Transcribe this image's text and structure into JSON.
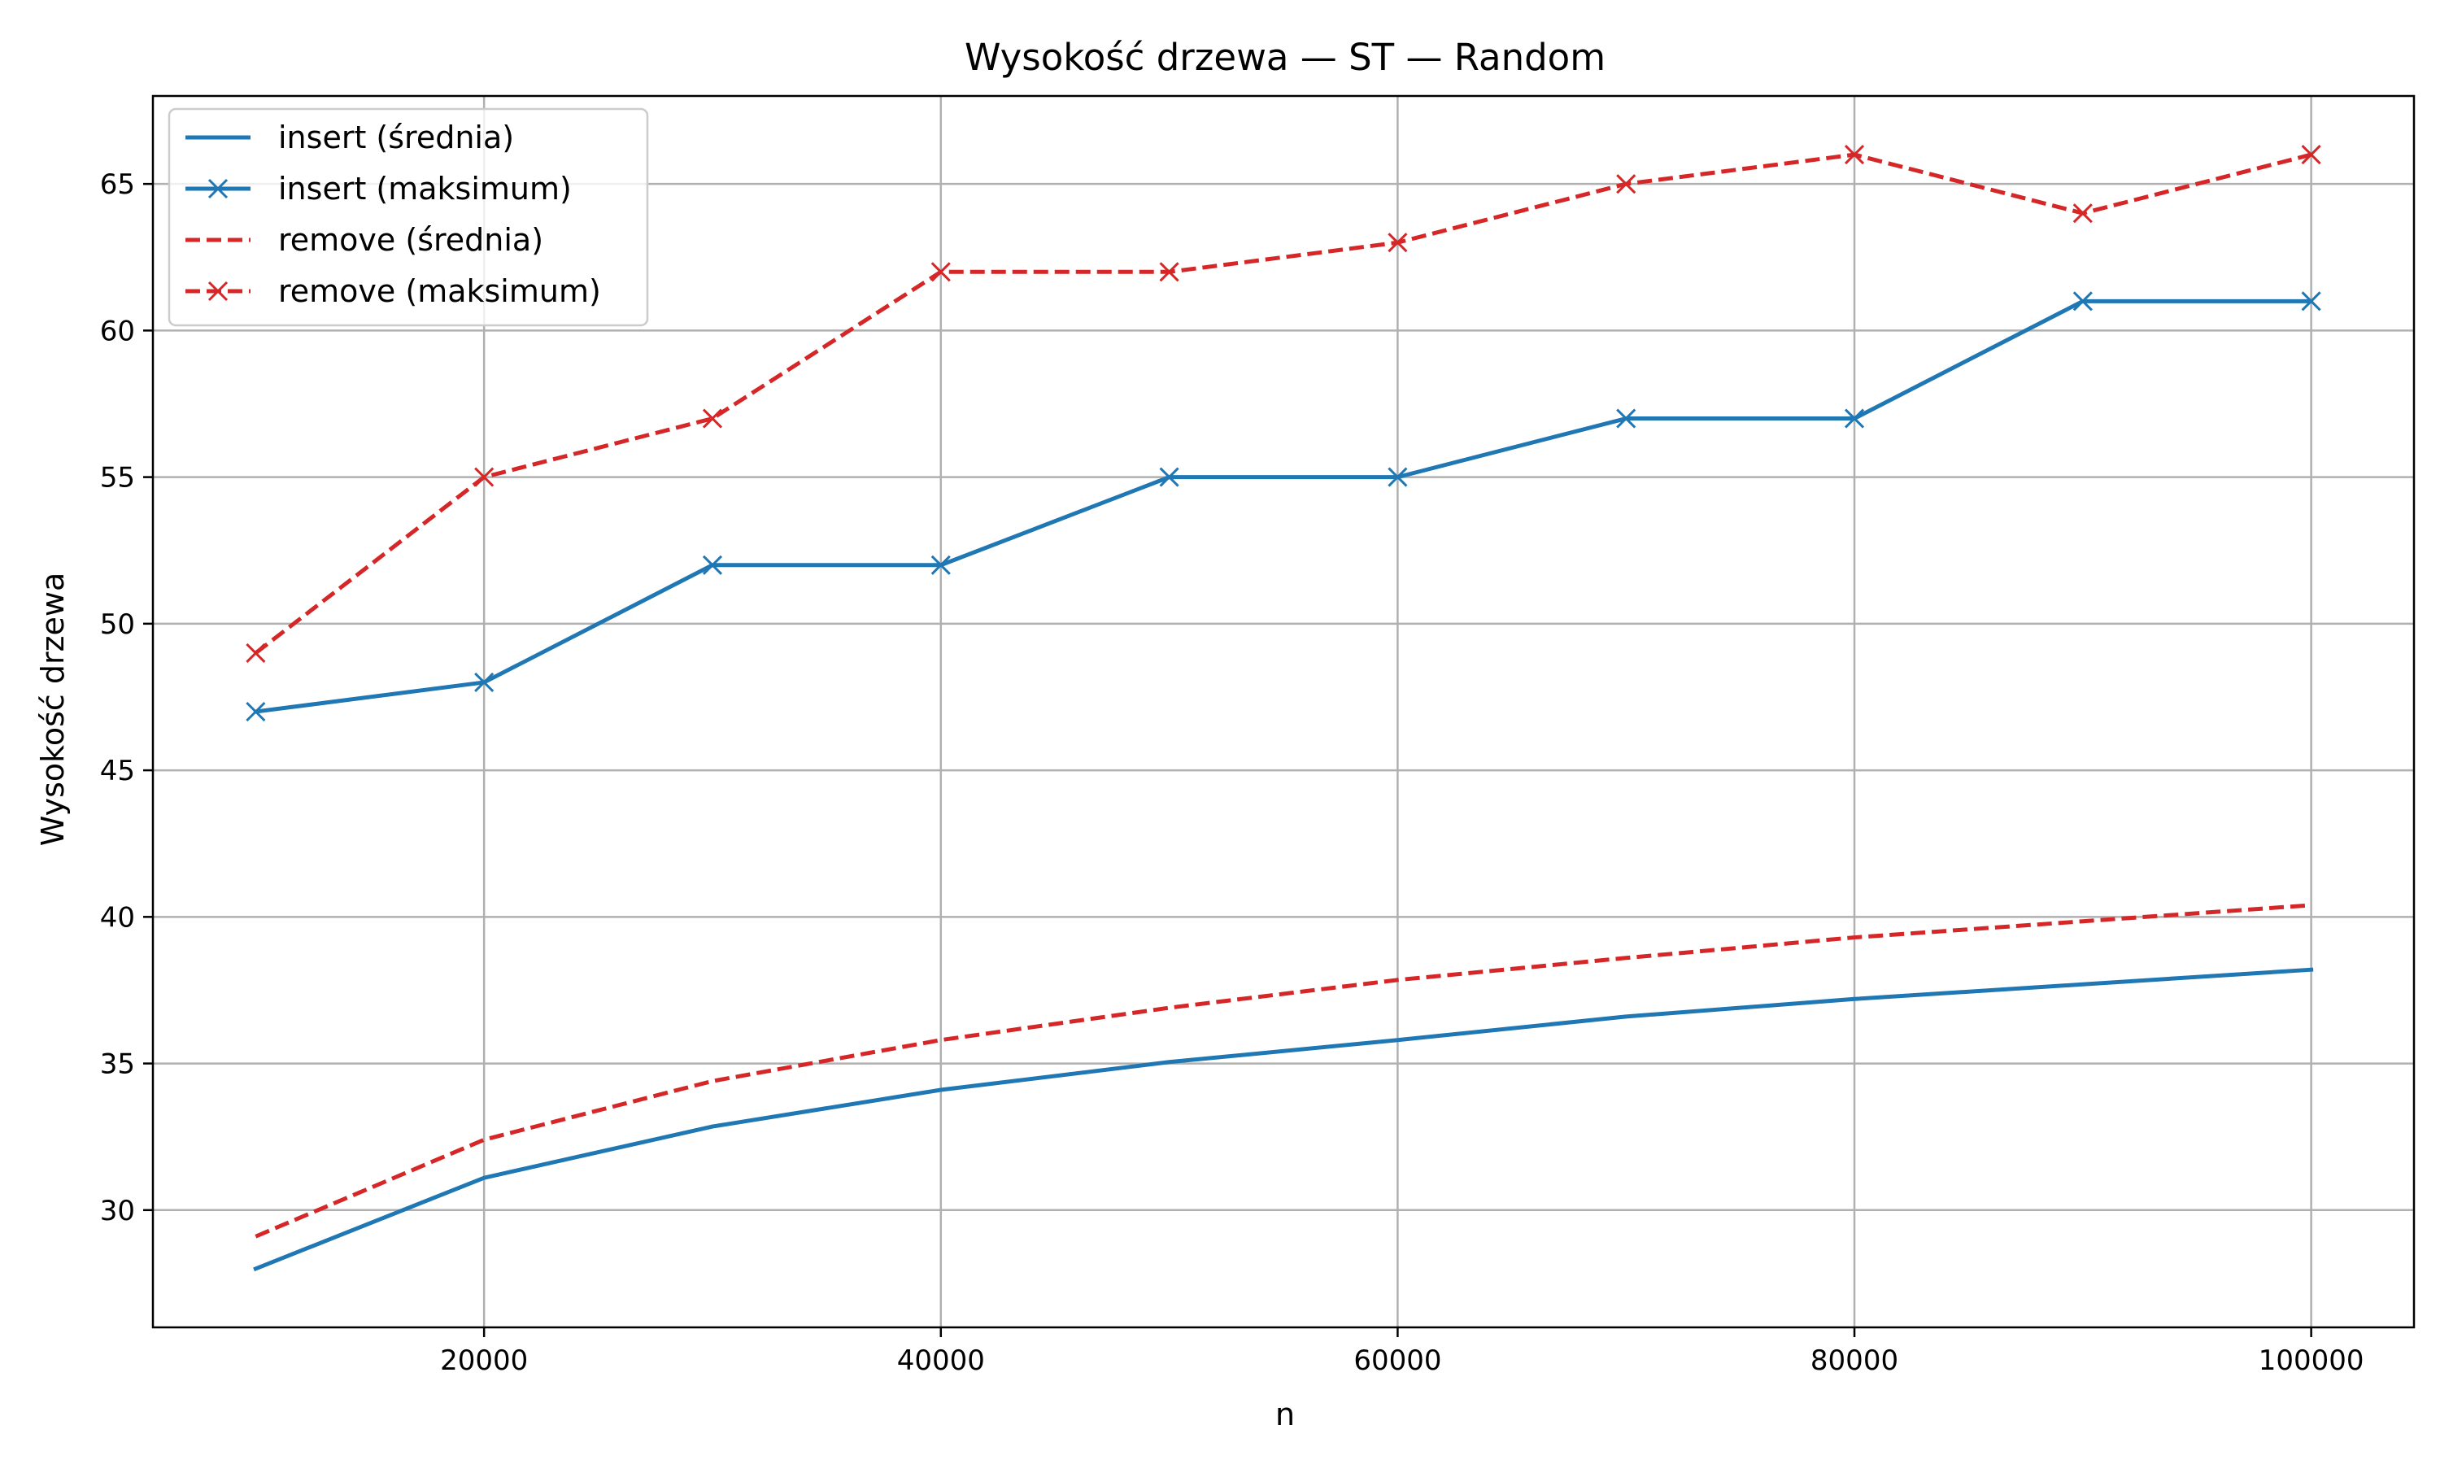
{
  "chart_data": {
    "type": "line",
    "title": "Wysokość drzewa — ST — Random",
    "xlabel": "n",
    "ylabel": "Wysokość drzewa",
    "x": [
      10000,
      20000,
      30000,
      40000,
      50000,
      60000,
      70000,
      80000,
      90000,
      100000
    ],
    "xlim": [
      5500,
      104500
    ],
    "ylim": [
      26,
      68
    ],
    "xticks": [
      20000,
      40000,
      60000,
      80000,
      100000
    ],
    "yticks": [
      30,
      35,
      40,
      45,
      50,
      55,
      60,
      65
    ],
    "grid": true,
    "legend_position": "top-left",
    "series": [
      {
        "name": "insert (średnia)",
        "color": "#1f77b4",
        "dash": false,
        "marker": false,
        "values": [
          28.0,
          31.1,
          32.85,
          34.1,
          35.05,
          35.8,
          36.6,
          37.2,
          37.7,
          38.2
        ]
      },
      {
        "name": "insert (maksimum)",
        "color": "#1f77b4",
        "dash": false,
        "marker": true,
        "values": [
          47,
          48,
          52,
          52,
          55,
          55,
          57,
          57,
          61,
          61
        ]
      },
      {
        "name": "remove (średnia)",
        "color": "#d62728",
        "dash": true,
        "marker": false,
        "values": [
          29.1,
          32.4,
          34.4,
          35.8,
          36.9,
          37.85,
          38.6,
          39.3,
          39.85,
          40.4
        ]
      },
      {
        "name": "remove (maksimum)",
        "color": "#d62728",
        "dash": true,
        "marker": true,
        "values": [
          49,
          55,
          57,
          62,
          62,
          63,
          65,
          66,
          64,
          66
        ]
      }
    ]
  }
}
